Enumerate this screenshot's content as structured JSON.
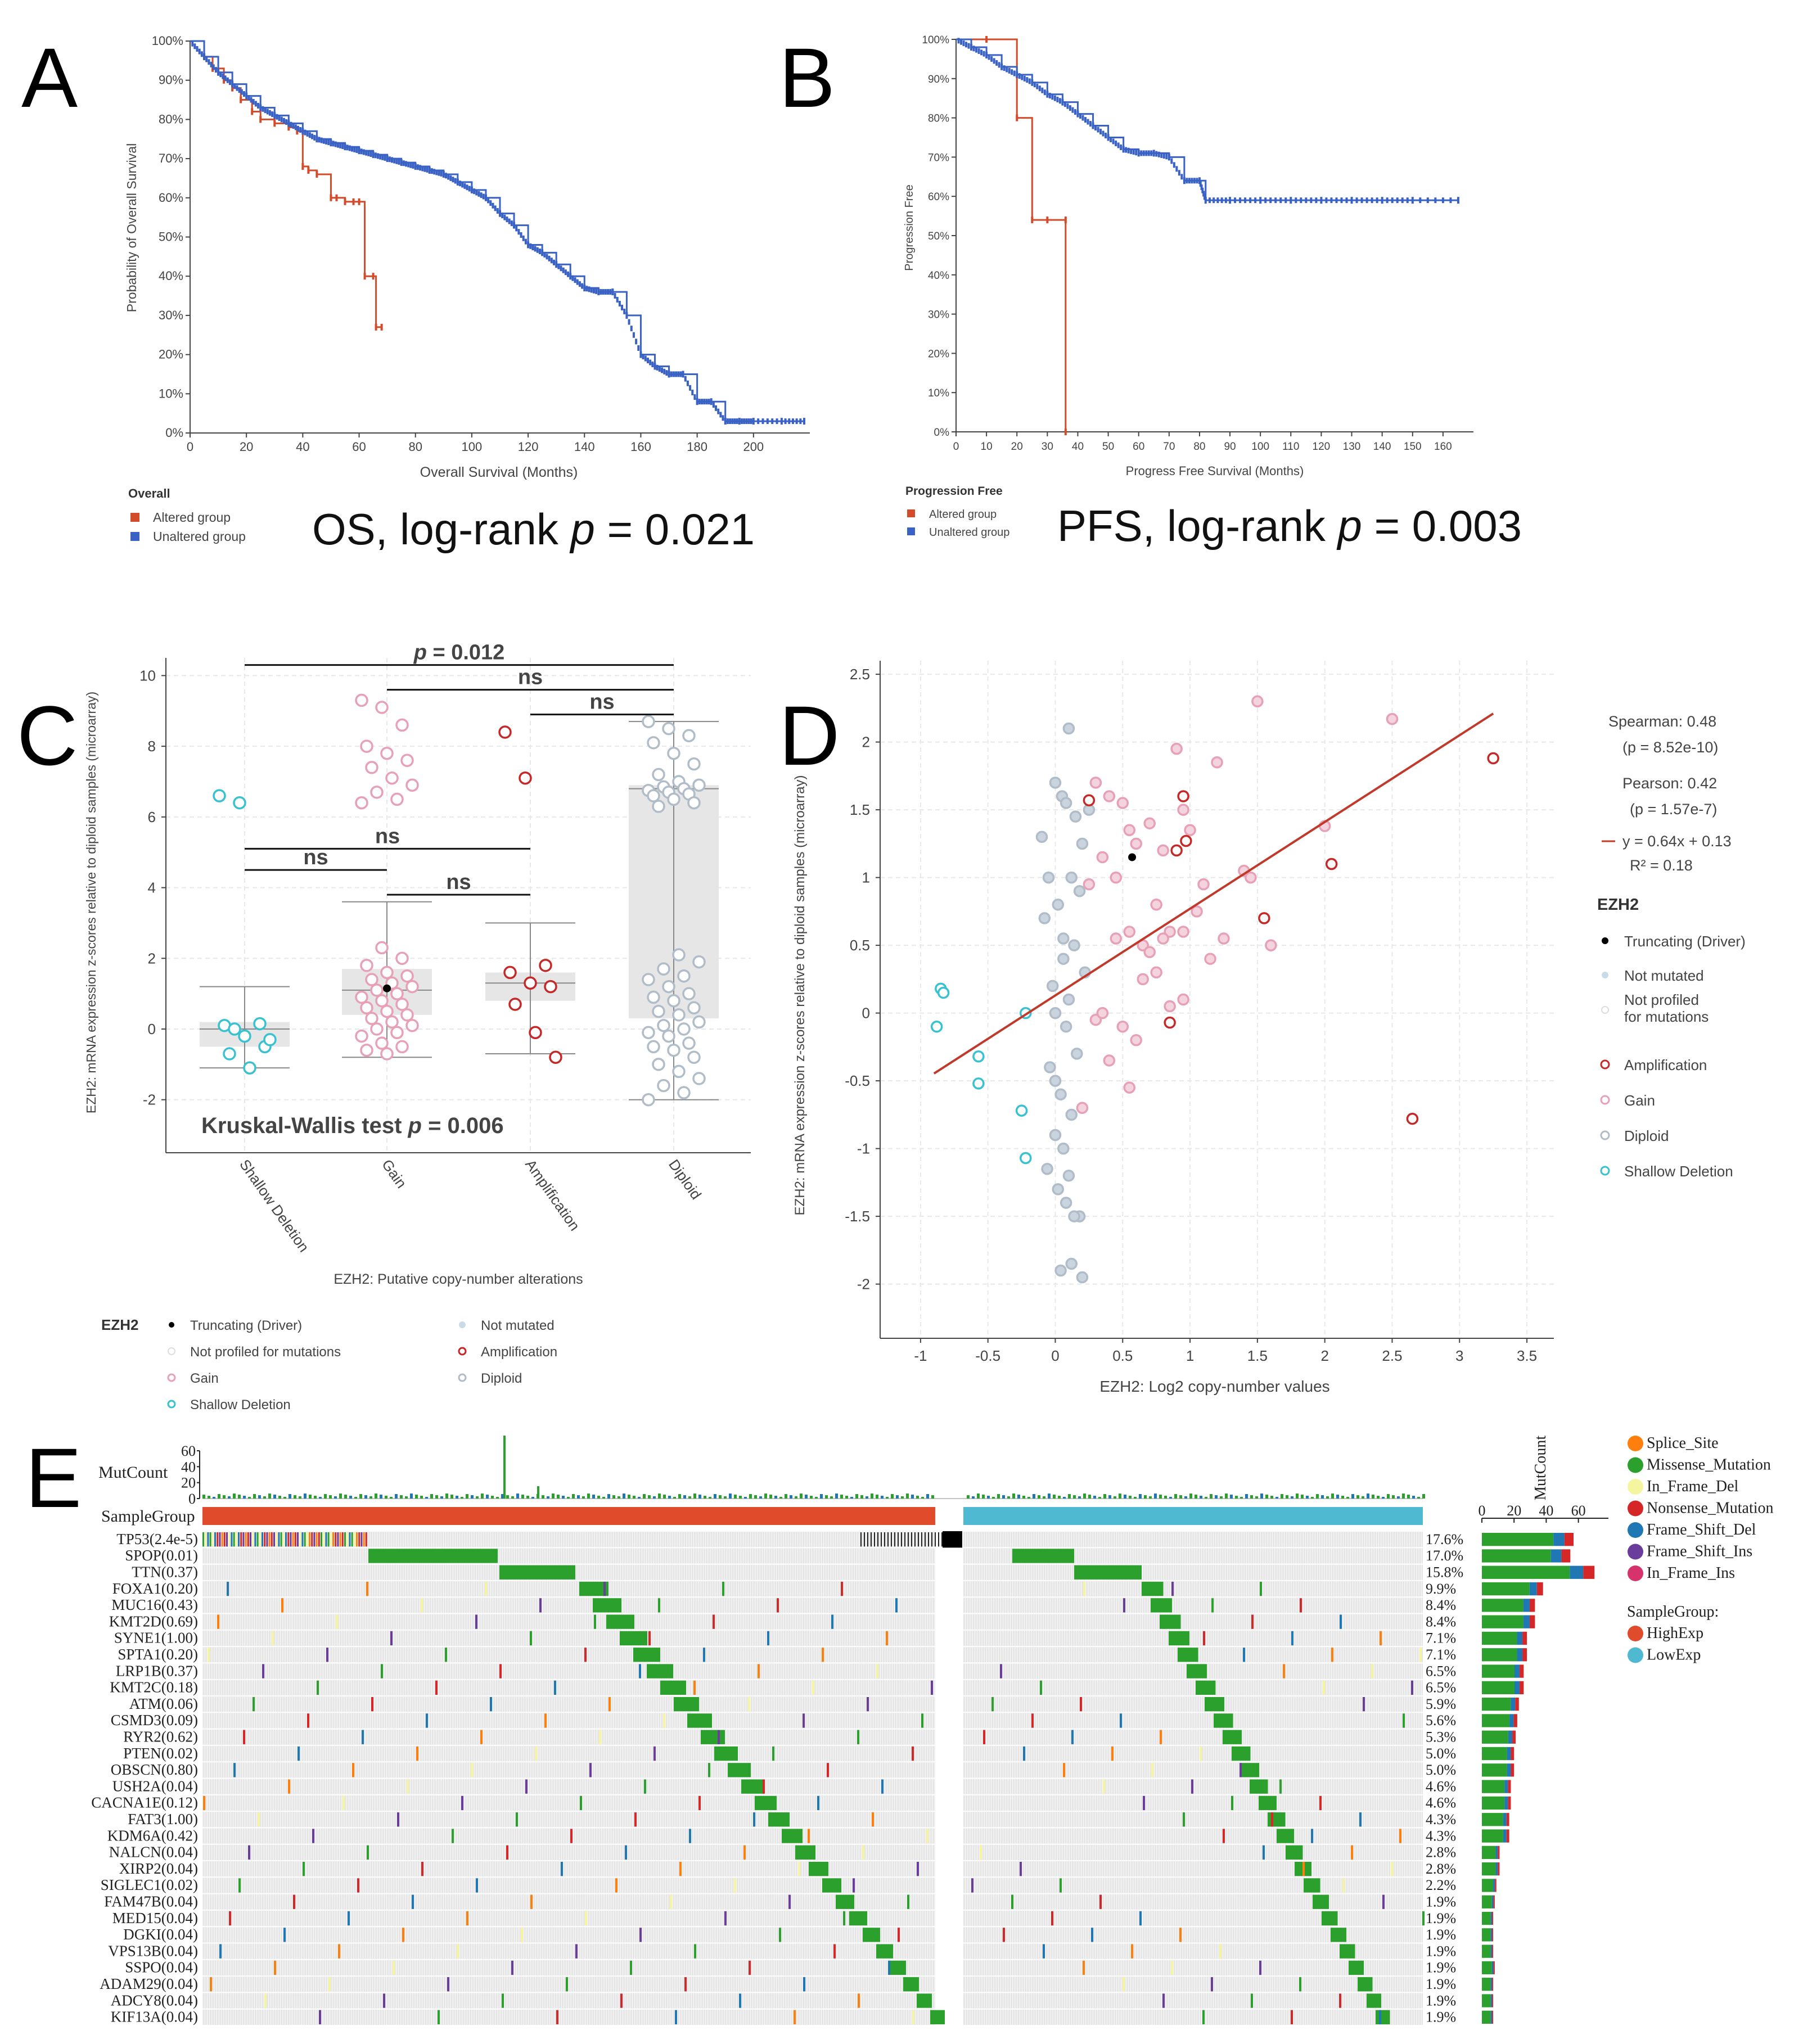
{
  "colors": {
    "altered": "#d24b2a",
    "unaltered": "#3a62c4",
    "axis": "#444444",
    "grid": "#e8e8e8",
    "gain": "#e8a0b6",
    "amp": "#c62828",
    "diploid": "#b0bcc8",
    "shallow": "#38c1d0",
    "notprof": "#dddddd",
    "trend": "#c0392b",
    "high": "#e04b2c",
    "low": "#4fb9d1",
    "missense": "#2ca02c",
    "nonsense": "#d62728",
    "frameshift_del": "#1f77b4",
    "frameshift_ins": "#6a3d9a",
    "inframe_del": "#f5f5a0",
    "inframe_ins": "#d6336c",
    "splice": "#ff7f0e",
    "cellbg": "#e6e6e6"
  },
  "panels": {
    "a": "A",
    "b": "B",
    "c": "C",
    "d": "D",
    "e": "E"
  },
  "chart_data": [
    {
      "id": "A",
      "type": "line",
      "xlabel": "Overall Survival (Months)",
      "ylabel": "Probability of Overall Survival",
      "xlim": [
        0,
        220
      ],
      "ylim": [
        0,
        100
      ],
      "xticks": [
        0,
        20,
        40,
        60,
        80,
        100,
        120,
        140,
        160,
        180,
        200
      ],
      "yticks": [
        "0%",
        "10%",
        "20%",
        "30%",
        "40%",
        "50%",
        "60%",
        "70%",
        "80%",
        "90%",
        "100%"
      ],
      "legend_title": "Overall",
      "stat": {
        "prefix": "OS, log-rank ",
        "p": "p",
        "suffix": " = 0.021"
      },
      "series": [
        {
          "name": "Altered group",
          "x": [
            0,
            5,
            8,
            12,
            15,
            18,
            22,
            25,
            30,
            35,
            38,
            40,
            42,
            45,
            50,
            52,
            55,
            58,
            60,
            62,
            65,
            66,
            68
          ],
          "y": [
            100,
            96,
            93,
            90,
            88,
            85,
            82,
            80,
            79,
            78,
            77,
            68,
            67,
            66,
            60,
            60,
            59,
            59,
            59,
            40,
            40,
            27,
            27
          ]
        },
        {
          "name": "Unaltered group",
          "x": [
            0,
            5,
            10,
            15,
            20,
            25,
            30,
            35,
            40,
            45,
            50,
            55,
            60,
            65,
            70,
            75,
            80,
            85,
            90,
            95,
            100,
            105,
            110,
            115,
            120,
            125,
            130,
            135,
            140,
            145,
            150,
            155,
            160,
            165,
            170,
            175,
            180,
            185,
            190,
            195,
            200,
            210,
            218
          ],
          "y": [
            100,
            96,
            92,
            89,
            86,
            83,
            81,
            79,
            77,
            75,
            74,
            73,
            72,
            71,
            70,
            69,
            68,
            67,
            66,
            64,
            62,
            60,
            56,
            53,
            48,
            46,
            43,
            40,
            37,
            36,
            36,
            30,
            20,
            17,
            15,
            15,
            8,
            8,
            3,
            3,
            3,
            3,
            3
          ]
        }
      ]
    },
    {
      "id": "B",
      "type": "line",
      "xlabel": "Progress Free Survival (Months)",
      "ylabel": "Progression Free",
      "xlim": [
        0,
        170
      ],
      "ylim": [
        0,
        100
      ],
      "xticks": [
        0,
        10,
        20,
        30,
        40,
        50,
        60,
        70,
        80,
        90,
        100,
        110,
        120,
        130,
        140,
        150,
        160
      ],
      "yticks": [
        "0%",
        "10%",
        "20%",
        "30%",
        "40%",
        "50%",
        "60%",
        "70%",
        "80%",
        "90%",
        "100%"
      ],
      "legend_title": "Progression Free",
      "stat": {
        "prefix": "PFS, log-rank ",
        "p": "p",
        "suffix": " = 0.003"
      },
      "series": [
        {
          "name": "Altered group",
          "x": [
            0,
            10,
            20,
            25,
            30,
            36,
            36
          ],
          "y": [
            100,
            100,
            80,
            54,
            54,
            54,
            0
          ]
        },
        {
          "name": "Unaltered group",
          "x": [
            0,
            5,
            10,
            15,
            20,
            25,
            30,
            35,
            40,
            45,
            50,
            55,
            60,
            65,
            70,
            75,
            80,
            82,
            90,
            100,
            110,
            120,
            130,
            140,
            150,
            165
          ],
          "y": [
            100,
            98,
            96,
            93,
            91,
            89,
            86,
            84,
            81,
            78,
            75,
            72,
            71,
            71,
            70,
            64,
            64,
            59,
            59,
            59,
            59,
            59,
            59,
            59,
            59,
            59
          ]
        }
      ]
    },
    {
      "id": "C",
      "type": "scatter",
      "xlabel": "EZH2: Putative copy-number alterations",
      "ylabel": "EZH2: mRNA expression z-scores relative to diploid samples (microarray)",
      "ylim": [
        -3.5,
        10.5
      ],
      "yticks": [
        -2,
        0,
        2,
        4,
        6,
        8,
        10
      ],
      "categories": [
        "Shallow Deletion",
        "Gain",
        "Amplification",
        "Diploid"
      ],
      "stat": {
        "prefix": "Kruskal-Wallis test ",
        "p": "p",
        "suffix": " = 0.006"
      },
      "brackets": [
        {
          "from": 0,
          "to": 3,
          "y": 10.3,
          "label": "p = 0.012"
        },
        {
          "from": 1,
          "to": 3,
          "y": 9.6,
          "label": "ns"
        },
        {
          "from": 2,
          "to": 3,
          "y": 8.9,
          "label": "ns"
        },
        {
          "from": 0,
          "to": 2,
          "y": 5.1,
          "label": "ns"
        },
        {
          "from": 0,
          "to": 1,
          "y": 4.5,
          "label": "ns"
        },
        {
          "from": 1,
          "to": 2,
          "y": 3.8,
          "label": "ns"
        }
      ],
      "boxes": [
        {
          "q1": -0.5,
          "median": 0.0,
          "q3": 0.2,
          "low": -1.1,
          "high": 1.2
        },
        {
          "q1": 0.4,
          "median": 1.1,
          "q3": 1.7,
          "low": -0.8,
          "high": 3.6
        },
        {
          "q1": 0.8,
          "median": 1.3,
          "q3": 1.6,
          "low": -0.7,
          "high": 3.0
        },
        {
          "q1": 0.3,
          "median": 6.8,
          "q3": 6.9,
          "low": -2.0,
          "high": 8.7
        }
      ],
      "points": [
        {
          "cat": 0,
          "y": [
            6.6,
            6.4,
            0.15,
            0.1,
            -0.2,
            -0.5,
            -0.7,
            -1.1,
            -0.3,
            0.0
          ]
        },
        {
          "cat": 1,
          "y": [
            9.3,
            9.1,
            8.6,
            8.0,
            7.8,
            7.6,
            7.4,
            7.1,
            6.9,
            6.7,
            6.5,
            6.4,
            2.3,
            2.0,
            1.8,
            1.6,
            1.5,
            1.4,
            1.3,
            1.2,
            1.1,
            1.0,
            0.9,
            0.8,
            0.7,
            0.6,
            0.5,
            0.4,
            0.3,
            0.2,
            0.1,
            0.0,
            -0.1,
            -0.2,
            -0.4,
            -0.5,
            -0.6,
            -0.7
          ]
        },
        {
          "cat": 2,
          "y": [
            8.4,
            7.1,
            1.8,
            1.6,
            1.3,
            1.2,
            0.7,
            -0.1,
            -0.8
          ]
        },
        {
          "cat": 3,
          "y": [
            8.7,
            8.5,
            8.3,
            8.1,
            7.8,
            7.5,
            7.2,
            7.0,
            6.9,
            6.85,
            6.8,
            6.75,
            6.7,
            6.65,
            6.6,
            6.5,
            6.4,
            6.3,
            2.1,
            1.9,
            1.7,
            1.5,
            1.4,
            1.2,
            1.0,
            0.9,
            0.8,
            0.6,
            0.5,
            0.4,
            0.2,
            0.1,
            0.0,
            -0.1,
            -0.2,
            -0.4,
            -0.5,
            -0.6,
            -0.8,
            -1.0,
            -1.2,
            -1.4,
            -1.6,
            -1.8,
            -2.0
          ]
        }
      ],
      "driver": {
        "cat": 1,
        "y": 1.15
      },
      "legend": {
        "title": "EZH2",
        "items": [
          "Truncating (Driver)",
          "Not profiled for mutations",
          "Gain",
          "Shallow Deletion",
          "Not mutated",
          "Amplification",
          "Diploid"
        ]
      }
    },
    {
      "id": "D",
      "type": "scatter",
      "xlabel": "EZH2: Log2 copy-number values",
      "ylabel": "EZH2: mRNA expression z-scores relative to diploid samples (microarray)",
      "xlim": [
        -1.3,
        3.7
      ],
      "ylim": [
        -2.4,
        2.6
      ],
      "xticks": [
        "-1",
        "-0.5",
        "0",
        "0.5",
        "1",
        "1.5",
        "2",
        "2.5",
        "3",
        "3.5"
      ],
      "yticks": [
        "-2",
        "-1.5",
        "-1",
        "-0.5",
        "0",
        "0.5",
        "1",
        "1.5",
        "2",
        "2.5"
      ],
      "regression": {
        "slope": 0.64,
        "intercept": 0.13,
        "x": [
          -0.9,
          3.25
        ]
      },
      "stats": [
        "Spearman: 0.48",
        "(p = 8.52e-10)",
        "Pearson: 0.42",
        "(p = 1.57e-7)",
        "y = 0.64x + 0.13",
        "R² = 0.18"
      ],
      "groups": [
        {
          "name": "Shallow Deletion",
          "x": [
            -0.85,
            -0.83,
            -0.88,
            -0.57,
            -0.57,
            -0.25,
            -0.22,
            -0.22
          ],
          "y": [
            0.18,
            0.15,
            -0.1,
            -0.32,
            -0.52,
            -0.72,
            -1.07,
            0.0
          ]
        },
        {
          "name": "Diploid",
          "x": [
            0.1,
            0.0,
            0.05,
            0.08,
            -0.1,
            0.15,
            0.2,
            0.25,
            -0.05,
            0.12,
            0.18,
            0.02,
            -0.08,
            0.06,
            0.14,
            0.22,
            -0.02,
            0.1,
            0.0,
            0.08,
            0.16,
            -0.04,
            0.04,
            0.12,
            0.0,
            0.06,
            -0.06,
            0.1,
            0.02,
            0.08,
            0.18,
            0.12,
            0.04,
            0.2,
            0.14,
            0.0,
            0.06
          ],
          "y": [
            2.1,
            1.7,
            1.6,
            1.55,
            1.3,
            1.45,
            1.25,
            1.5,
            1.0,
            1.0,
            0.9,
            0.8,
            0.7,
            0.55,
            0.5,
            0.3,
            0.2,
            0.1,
            0.0,
            -0.1,
            -0.3,
            -0.4,
            -0.6,
            -0.75,
            -0.9,
            -1.0,
            -1.15,
            -1.2,
            -1.3,
            -1.4,
            -1.5,
            -1.85,
            -1.9,
            -1.95,
            -1.5,
            -0.5,
            0.4
          ]
        },
        {
          "name": "Gain",
          "x": [
            0.3,
            0.4,
            0.5,
            0.55,
            0.6,
            0.7,
            0.8,
            0.9,
            0.95,
            1.0,
            1.1,
            1.2,
            1.25,
            1.4,
            1.45,
            1.5,
            1.6,
            2.0,
            2.5,
            0.35,
            0.45,
            0.55,
            0.65,
            0.75,
            0.85,
            0.95,
            0.5,
            0.6,
            0.7,
            0.8,
            0.4,
            0.3,
            0.25,
            0.55,
            0.65,
            0.75,
            0.85,
            0.95,
            1.05,
            1.15,
            0.2,
            0.35,
            0.45
          ],
          "y": [
            1.7,
            1.6,
            1.55,
            1.35,
            1.25,
            1.4,
            1.2,
            1.95,
            1.5,
            1.35,
            0.95,
            1.85,
            0.55,
            1.05,
            1.0,
            2.3,
            0.5,
            1.38,
            2.17,
            1.15,
            1.0,
            0.6,
            0.5,
            0.3,
            0.6,
            0.1,
            -0.1,
            -0.2,
            0.45,
            0.55,
            -0.35,
            -0.05,
            0.95,
            -0.55,
            0.25,
            0.8,
            0.05,
            0.6,
            0.75,
            0.4,
            -0.7,
            0.0,
            0.55
          ]
        },
        {
          "name": "Amplification",
          "x": [
            0.25,
            0.9,
            0.95,
            0.97,
            1.55,
            2.05,
            2.65,
            3.25,
            0.85
          ],
          "y": [
            1.57,
            1.2,
            1.6,
            1.27,
            0.7,
            1.1,
            -0.78,
            1.88,
            -0.07
          ]
        }
      ],
      "driver": {
        "x": 0.57,
        "y": 1.15
      },
      "legend": {
        "title": "EZH2",
        "items": [
          "Truncating (Driver)",
          "Not mutated",
          "Not profiled for mutations",
          "Amplification",
          "Gain",
          "Diploid",
          "Shallow Deletion"
        ]
      }
    },
    {
      "id": "E",
      "type": "heatmap",
      "top_label": "MutCount",
      "top_ticks": [
        "0",
        "20",
        "40",
        "60"
      ],
      "group_row_label": "SampleGroup",
      "side_label": "MutCount",
      "side_ticks": [
        "0",
        "20",
        "40",
        "60"
      ],
      "genes": [
        "TP53(2.4e-5)",
        "SPOP(0.01)",
        "TTN(0.37)",
        "FOXA1(0.20)",
        "MUC16(0.43)",
        "KMT2D(0.69)",
        "SYNE1(1.00)",
        "SPTA1(0.20)",
        "LRP1B(0.37)",
        "KMT2C(0.18)",
        "ATM(0.06)",
        "CSMD3(0.09)",
        "RYR2(0.62)",
        "PTEN(0.02)",
        "OBSCN(0.80)",
        "USH2A(0.04)",
        "CACNA1E(0.12)",
        "FAT3(1.00)",
        "KDM6A(0.42)",
        "NALCN(0.04)",
        "XIRP2(0.04)",
        "SIGLEC1(0.02)",
        "FAM47B(0.04)",
        "MED15(0.04)",
        "DGKI(0.04)",
        "VPS13B(0.04)",
        "SSPO(0.04)",
        "ADAM29(0.04)",
        "ADCY8(0.04)",
        "KIF13A(0.04)"
      ],
      "freq": [
        "17.6%",
        "17.0%",
        "15.8%",
        "9.9%",
        "8.4%",
        "8.4%",
        "7.1%",
        "7.1%",
        "6.5%",
        "6.5%",
        "5.9%",
        "5.6%",
        "5.3%",
        "5.0%",
        "5.0%",
        "4.6%",
        "4.6%",
        "4.3%",
        "4.3%",
        "2.8%",
        "2.8%",
        "2.2%",
        "1.9%",
        "1.9%",
        "1.9%",
        "1.9%",
        "1.9%",
        "1.9%",
        "1.9%",
        "1.9%"
      ],
      "mutcount": [
        57,
        55,
        70,
        38,
        33,
        33,
        28,
        28,
        26,
        26,
        23,
        22,
        21,
        20,
        20,
        18,
        18,
        17,
        17,
        11,
        11,
        9,
        8,
        7,
        7,
        7,
        8,
        7,
        7,
        7
      ],
      "legend_types": [
        "Splice_Site",
        "Missense_Mutation",
        "In_Frame_Del",
        "Nonsense_Mutation",
        "Frame_Shift_Del",
        "Frame_Shift_Ins",
        "In_Frame_Ins"
      ],
      "group_legend_title": "SampleGroup:",
      "groups": [
        "HighExp",
        "LowExp"
      ]
    }
  ]
}
